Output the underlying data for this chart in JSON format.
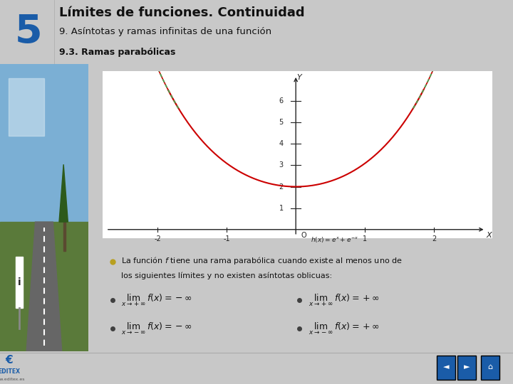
{
  "title_main": "Límites de funciones. Continuidad",
  "title_sub": "9. Asíntotas y ramas infinitas de una función",
  "title_sub2": "9.3. Ramas parabólicas",
  "header_bg": "#e0e0e0",
  "header_number": "5",
  "header_number_color": "#1a5ca8",
  "content_bg": "#ffffff",
  "graph_bg": "#ffffff",
  "text_bg": "#dce8f0",
  "outer_bg": "#c8c8c8",
  "bullet_color_main": "#b8a020",
  "bullet_color_sub": "#404040",
  "curve_color": "#cc0000",
  "dashed_color": "#44aa55",
  "axes_color": "#222222",
  "tick_color": "#222222",
  "label_color": "#222222",
  "x_ticks": [
    -2,
    -1,
    1,
    2
  ],
  "y_ticks": [
    1,
    2,
    3,
    4,
    5,
    6
  ],
  "nav_button_color": "#1a5ca8",
  "editex_color": "#1a5ca8"
}
